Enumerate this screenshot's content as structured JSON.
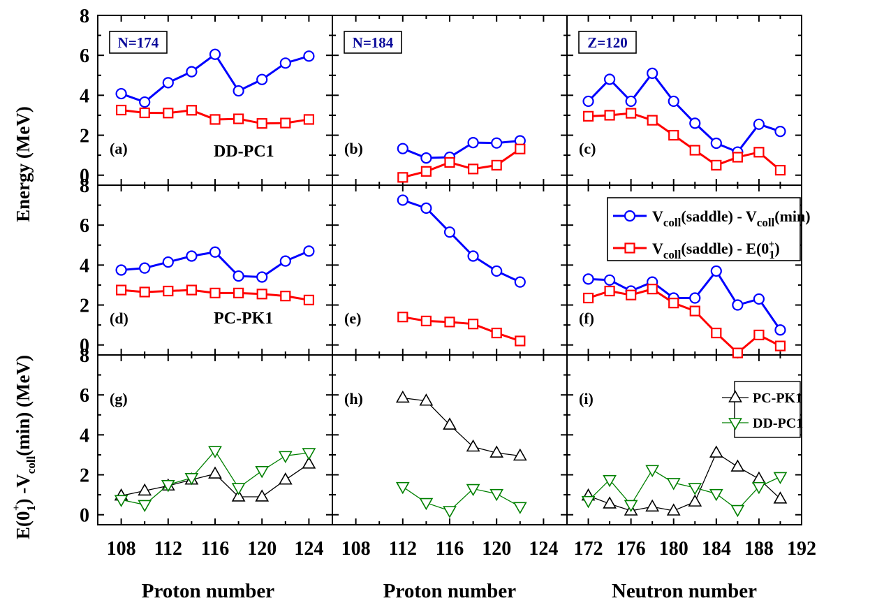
{
  "chart_data": {
    "type": "line",
    "layout": "3x3 panel grid",
    "ylim": [
      -0.5,
      8
    ],
    "yticks": [
      "0",
      "2",
      "4",
      "6",
      "8"
    ],
    "xaxes": [
      {
        "label": "Proton number",
        "xlim": [
          106,
          126
        ],
        "ticks": [
          "108",
          "112",
          "116",
          "120",
          "124"
        ]
      },
      {
        "label": "Proton number",
        "xlim": [
          106,
          126
        ],
        "ticks": [
          "108",
          "112",
          "116",
          "120",
          "124"
        ]
      },
      {
        "label": "Neutron number",
        "xlim": [
          170,
          192
        ],
        "ticks": [
          "172",
          "176",
          "180",
          "184",
          "188",
          "192"
        ]
      }
    ],
    "ylabel_top": "Energy (MeV)",
    "ylabel_bottom": "E(0_1^+) - V_coll(min) (MeV)",
    "legend_top": {
      "placement": "panel (f), top-right",
      "entries": [
        {
          "main": "V",
          "sub": "coll",
          "mid": "(saddle) - V",
          "sub2": "coll",
          "end": "(min)",
          "color": "#0000ff",
          "marker": "circle"
        },
        {
          "main": "V",
          "sub": "coll",
          "mid": "(saddle) - E(0",
          "sub2": "1",
          "sup": "+",
          "end": ")",
          "color": "#ff0000",
          "marker": "square"
        }
      ]
    },
    "legend_bottom": {
      "placement": "panel (i), top-right",
      "entries": [
        {
          "label": "PC-PK1",
          "color": "#000000",
          "marker": "triangle-up"
        },
        {
          "label": "DD-PC1",
          "color": "#008000",
          "marker": "triangle-down"
        }
      ]
    },
    "panels": [
      {
        "id": "a",
        "label": "(a)",
        "row": 0,
        "col": 0,
        "box": "N=174",
        "model": "DD-PC1",
        "series": [
          {
            "color": "#0000ff",
            "marker": "circle",
            "x": [
              108,
              110,
              112,
              114,
              116,
              118,
              120,
              122,
              124
            ],
            "y": [
              4.08,
              3.66,
              4.63,
              5.18,
              6.05,
              4.22,
              4.79,
              5.61,
              5.96
            ]
          },
          {
            "color": "#ff0000",
            "marker": "square",
            "x": [
              108,
              110,
              112,
              114,
              116,
              118,
              120,
              122,
              124
            ],
            "y": [
              3.26,
              3.12,
              3.11,
              3.25,
              2.79,
              2.82,
              2.59,
              2.61,
              2.79
            ]
          }
        ]
      },
      {
        "id": "b",
        "label": "(b)",
        "row": 0,
        "col": 1,
        "box": "N=184",
        "model": "",
        "series": [
          {
            "color": "#0000ff",
            "marker": "circle",
            "x": [
              112,
              114,
              116,
              118,
              120,
              122
            ],
            "y": [
              1.33,
              0.86,
              0.9,
              1.63,
              1.61,
              1.72
            ]
          },
          {
            "color": "#ff0000",
            "marker": "square",
            "x": [
              112,
              114,
              116,
              118,
              120,
              122
            ],
            "y": [
              -0.11,
              0.19,
              0.64,
              0.31,
              0.5,
              1.31
            ]
          }
        ]
      },
      {
        "id": "c",
        "label": "(c)",
        "row": 0,
        "col": 2,
        "box": "Z=120",
        "model": "",
        "series": [
          {
            "color": "#0000ff",
            "marker": "circle",
            "x": [
              172,
              174,
              176,
              178,
              180,
              182,
              184,
              186,
              188,
              190
            ],
            "y": [
              3.7,
              4.8,
              3.7,
              5.1,
              3.7,
              2.6,
              1.6,
              1.16,
              2.55,
              2.19
            ]
          },
          {
            "color": "#ff0000",
            "marker": "square",
            "x": [
              172,
              174,
              176,
              178,
              180,
              182,
              184,
              186,
              188,
              190
            ],
            "y": [
              2.95,
              3.0,
              3.1,
              2.75,
              2.0,
              1.25,
              0.5,
              0.9,
              1.15,
              0.25
            ]
          }
        ]
      },
      {
        "id": "d",
        "label": "(d)",
        "row": 1,
        "col": 0,
        "box": "",
        "model": "PC-PK1",
        "series": [
          {
            "color": "#0000ff",
            "marker": "circle",
            "x": [
              108,
              110,
              112,
              114,
              116,
              118,
              120,
              122,
              124
            ],
            "y": [
              3.75,
              3.85,
              4.15,
              4.45,
              4.65,
              3.45,
              3.4,
              4.2,
              4.7
            ]
          },
          {
            "color": "#ff0000",
            "marker": "square",
            "x": [
              108,
              110,
              112,
              114,
              116,
              118,
              120,
              122,
              124
            ],
            "y": [
              2.75,
              2.65,
              2.7,
              2.75,
              2.6,
              2.6,
              2.55,
              2.45,
              2.25
            ]
          }
        ]
      },
      {
        "id": "e",
        "label": "(e)",
        "row": 1,
        "col": 1,
        "box": "",
        "model": "",
        "series": [
          {
            "color": "#0000ff",
            "marker": "circle",
            "x": [
              112,
              114,
              116,
              118,
              120,
              122
            ],
            "y": [
              7.25,
              6.85,
              5.65,
              4.45,
              3.7,
              3.15
            ]
          },
          {
            "color": "#ff0000",
            "marker": "square",
            "x": [
              112,
              114,
              116,
              118,
              120,
              122
            ],
            "y": [
              1.4,
              1.2,
              1.15,
              1.05,
              0.6,
              0.2
            ]
          }
        ]
      },
      {
        "id": "f",
        "label": "(f)",
        "row": 1,
        "col": 2,
        "box": "",
        "model": "",
        "series": [
          {
            "color": "#0000ff",
            "marker": "circle",
            "x": [
              172,
              174,
              176,
              178,
              180,
              182,
              184,
              186,
              188,
              190
            ],
            "y": [
              3.3,
              3.25,
              2.7,
              3.15,
              2.35,
              2.35,
              3.7,
              2.0,
              2.3,
              0.75
            ]
          },
          {
            "color": "#ff0000",
            "marker": "square",
            "x": [
              172,
              174,
              176,
              178,
              180,
              182,
              184,
              186,
              188,
              190
            ],
            "y": [
              2.35,
              2.7,
              2.5,
              2.8,
              2.1,
              1.7,
              0.6,
              -0.4,
              0.5,
              -0.05
            ]
          }
        ]
      },
      {
        "id": "g",
        "label": "(g)",
        "row": 2,
        "col": 0,
        "box": "",
        "model": "",
        "series": [
          {
            "color": "#000000",
            "marker": "triangle-up",
            "x": [
              108,
              110,
              112,
              114,
              116,
              118,
              120,
              122,
              124
            ],
            "y": [
              0.95,
              1.2,
              1.45,
              1.75,
              2.05,
              0.9,
              0.9,
              1.75,
              2.55
            ]
          },
          {
            "color": "#008000",
            "marker": "triangle-down",
            "x": [
              108,
              110,
              112,
              114,
              116,
              118,
              120,
              122,
              124
            ],
            "y": [
              0.75,
              0.5,
              1.5,
              1.85,
              3.2,
              1.35,
              2.2,
              2.95,
              3.1
            ]
          }
        ]
      },
      {
        "id": "h",
        "label": "(h)",
        "row": 2,
        "col": 1,
        "box": "",
        "model": "",
        "series": [
          {
            "color": "#000000",
            "marker": "triangle-up",
            "x": [
              112,
              114,
              116,
              118,
              120,
              122
            ],
            "y": [
              5.85,
              5.7,
              4.5,
              3.4,
              3.1,
              2.95
            ]
          },
          {
            "color": "#008000",
            "marker": "triangle-down",
            "x": [
              112,
              114,
              116,
              118,
              120,
              122
            ],
            "y": [
              1.4,
              0.6,
              0.2,
              1.3,
              1.05,
              0.4
            ]
          }
        ]
      },
      {
        "id": "i",
        "label": "(i)",
        "row": 2,
        "col": 2,
        "box": "",
        "model": "",
        "series": [
          {
            "color": "#000000",
            "marker": "triangle-up",
            "x": [
              172,
              174,
              176,
              178,
              180,
              182,
              184,
              186,
              188,
              190
            ],
            "y": [
              0.95,
              0.55,
              0.2,
              0.4,
              0.2,
              0.65,
              3.1,
              2.4,
              1.8,
              0.8
            ]
          },
          {
            "color": "#008000",
            "marker": "triangle-down",
            "x": [
              172,
              174,
              176,
              178,
              180,
              182,
              184,
              186,
              188,
              190
            ],
            "y": [
              0.7,
              1.75,
              0.5,
              2.25,
              1.6,
              1.35,
              1.05,
              0.25,
              1.4,
              1.9
            ]
          }
        ]
      }
    ]
  }
}
